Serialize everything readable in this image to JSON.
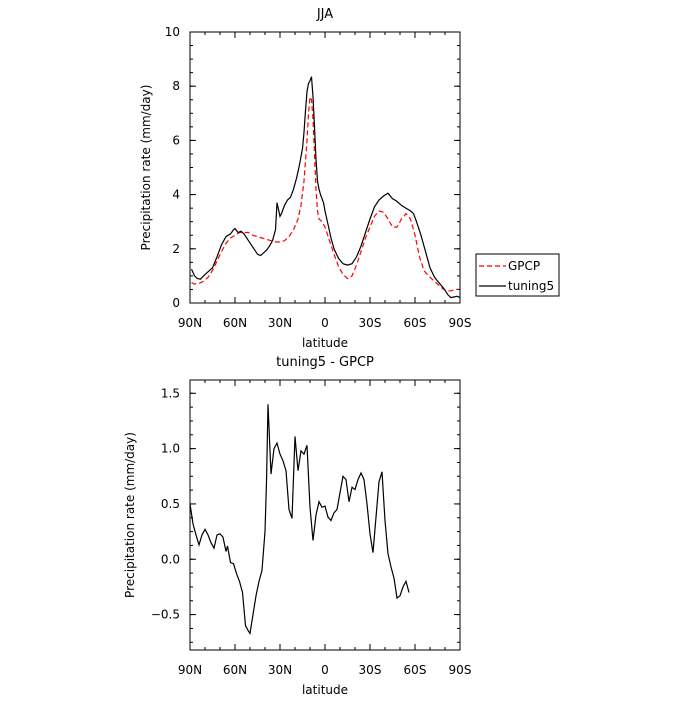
{
  "colors": {
    "obs": "#ff0000",
    "model": "#000000",
    "axis": "#000000"
  },
  "chart_data": [
    {
      "type": "line",
      "title": "JJA",
      "xlabel": "latitude",
      "ylabel": "Precipitation rate (mm/day)",
      "xlim": [
        90,
        -90
      ],
      "ylim": [
        0,
        10
      ],
      "x_ticks": [
        90,
        60,
        30,
        0,
        -30,
        -60,
        -90
      ],
      "x_tick_labels": [
        "90N",
        "60N",
        "30N",
        "0",
        "30S",
        "60S",
        "90S"
      ],
      "y_ticks": [
        0,
        2,
        4,
        6,
        8,
        10
      ],
      "y_tick_labels": [
        "0",
        "2",
        "4",
        "6",
        "8",
        "10"
      ],
      "legend_placement": "right",
      "series": [
        {
          "name": "GPCP",
          "style": "dashed",
          "color": "#ff0000",
          "points": [
            [
              89,
              0.75
            ],
            [
              87,
              0.7
            ],
            [
              84,
              0.72
            ],
            [
              81,
              0.8
            ],
            [
              78,
              0.95
            ],
            [
              75,
              1.2
            ],
            [
              72,
              1.55
            ],
            [
              69,
              1.9
            ],
            [
              66,
              2.2
            ],
            [
              63,
              2.4
            ],
            [
              60,
              2.5
            ],
            [
              57,
              2.6
            ],
            [
              54,
              2.6
            ],
            [
              51,
              2.6
            ],
            [
              48,
              2.5
            ],
            [
              45,
              2.45
            ],
            [
              42,
              2.4
            ],
            [
              39,
              2.35
            ],
            [
              36,
              2.3
            ],
            [
              33,
              2.25
            ],
            [
              30,
              2.25
            ],
            [
              27,
              2.3
            ],
            [
              24,
              2.45
            ],
            [
              21,
              2.7
            ],
            [
              18,
              3.1
            ],
            [
              16,
              3.6
            ],
            [
              14,
              4.5
            ],
            [
              12,
              6.0
            ],
            [
              11,
              7.0
            ],
            [
              10,
              7.6
            ],
            [
              9,
              7.5
            ],
            [
              8,
              6.8
            ],
            [
              7,
              5.5
            ],
            [
              6,
              4.2
            ],
            [
              5,
              3.4
            ],
            [
              4,
              3.1
            ],
            [
              2,
              3.0
            ],
            [
              0,
              2.8
            ],
            [
              -3,
              2.3
            ],
            [
              -6,
              1.8
            ],
            [
              -9,
              1.35
            ],
            [
              -12,
              1.05
            ],
            [
              -15,
              0.9
            ],
            [
              -18,
              1.0
            ],
            [
              -21,
              1.4
            ],
            [
              -24,
              1.9
            ],
            [
              -27,
              2.4
            ],
            [
              -30,
              2.8
            ],
            [
              -33,
              3.2
            ],
            [
              -36,
              3.4
            ],
            [
              -39,
              3.35
            ],
            [
              -42,
              3.1
            ],
            [
              -45,
              2.8
            ],
            [
              -48,
              2.8
            ],
            [
              -51,
              3.1
            ],
            [
              -54,
              3.3
            ],
            [
              -57,
              3.1
            ],
            [
              -60,
              2.5
            ],
            [
              -63,
              1.7
            ],
            [
              -66,
              1.2
            ],
            [
              -69,
              1.0
            ],
            [
              -72,
              0.85
            ],
            [
              -75,
              0.7
            ],
            [
              -78,
              0.55
            ],
            [
              -81,
              0.45
            ],
            [
              -84,
              0.45
            ],
            [
              -87,
              0.5
            ],
            [
              -89,
              0.5
            ]
          ]
        },
        {
          "name": "tuning5",
          "style": "solid",
          "color": "#000000",
          "points": [
            [
              89,
              1.25
            ],
            [
              87,
              1.0
            ],
            [
              85,
              0.9
            ],
            [
              83,
              0.88
            ],
            [
              81,
              1.0
            ],
            [
              78,
              1.15
            ],
            [
              75,
              1.3
            ],
            [
              72,
              1.7
            ],
            [
              69,
              2.15
            ],
            [
              66,
              2.45
            ],
            [
              63,
              2.55
            ],
            [
              61,
              2.7
            ],
            [
              60,
              2.75
            ],
            [
              58,
              2.6
            ],
            [
              56,
              2.65
            ],
            [
              54,
              2.55
            ],
            [
              51,
              2.3
            ],
            [
              48,
              2.05
            ],
            [
              45,
              1.8
            ],
            [
              43,
              1.75
            ],
            [
              41,
              1.85
            ],
            [
              39,
              1.95
            ],
            [
              37,
              2.1
            ],
            [
              35,
              2.3
            ],
            [
              33,
              2.7
            ],
            [
              32,
              3.7
            ],
            [
              30,
              3.2
            ],
            [
              29,
              3.3
            ],
            [
              27,
              3.6
            ],
            [
              25,
              3.8
            ],
            [
              23,
              3.9
            ],
            [
              21,
              4.2
            ],
            [
              19,
              4.6
            ],
            [
              17,
              5.1
            ],
            [
              15,
              5.7
            ],
            [
              14,
              6.3
            ],
            [
              13,
              7.1
            ],
            [
              12,
              7.8
            ],
            [
              11,
              8.1
            ],
            [
              10,
              8.2
            ],
            [
              9,
              8.35
            ],
            [
              8,
              7.6
            ],
            [
              7,
              6.5
            ],
            [
              6,
              5.3
            ],
            [
              5,
              4.5
            ],
            [
              4,
              4.2
            ],
            [
              3,
              4.0
            ],
            [
              1,
              3.7
            ],
            [
              0,
              3.4
            ],
            [
              -2,
              2.9
            ],
            [
              -4,
              2.4
            ],
            [
              -6,
              2.0
            ],
            [
              -9,
              1.65
            ],
            [
              -12,
              1.45
            ],
            [
              -15,
              1.4
            ],
            [
              -18,
              1.45
            ],
            [
              -21,
              1.7
            ],
            [
              -24,
              2.1
            ],
            [
              -27,
              2.6
            ],
            [
              -30,
              3.1
            ],
            [
              -33,
              3.55
            ],
            [
              -36,
              3.8
            ],
            [
              -39,
              3.95
            ],
            [
              -42,
              4.05
            ],
            [
              -45,
              3.85
            ],
            [
              -48,
              3.75
            ],
            [
              -51,
              3.6
            ],
            [
              -54,
              3.5
            ],
            [
              -57,
              3.4
            ],
            [
              -59,
              3.3
            ],
            [
              -61,
              3.0
            ],
            [
              -64,
              2.5
            ],
            [
              -67,
              1.9
            ],
            [
              -70,
              1.3
            ],
            [
              -73,
              0.95
            ],
            [
              -76,
              0.75
            ],
            [
              -79,
              0.55
            ],
            [
              -82,
              0.3
            ],
            [
              -84,
              0.2
            ],
            [
              -86,
              0.22
            ],
            [
              -88,
              0.25
            ],
            [
              -90,
              0.2
            ]
          ]
        }
      ]
    },
    {
      "type": "line",
      "title": "tuning5 - GPCP",
      "xlabel": "latitude",
      "ylabel": "Precipitation rate (mm/day)",
      "xlim": [
        90,
        -90
      ],
      "ylim": [
        -0.82,
        1.62
      ],
      "x_ticks": [
        90,
        60,
        30,
        0,
        -30,
        -60,
        -90
      ],
      "x_tick_labels": [
        "90N",
        "60N",
        "30N",
        "0",
        "30S",
        "60S",
        "90S"
      ],
      "y_ticks": [
        -0.5,
        0,
        0.5,
        1,
        1.5
      ],
      "y_tick_labels": [
        "−0.5",
        "0.0",
        "0.5",
        "1.0",
        "1.5"
      ],
      "series": [
        {
          "style": "solid",
          "color": "#000000",
          "points": [
            [
              90,
              0.5
            ],
            [
              88,
              0.32
            ],
            [
              86,
              0.22
            ],
            [
              84,
              0.13
            ],
            [
              82,
              0.22
            ],
            [
              80,
              0.27
            ],
            [
              78,
              0.22
            ],
            [
              76,
              0.15
            ],
            [
              74,
              0.1
            ],
            [
              72,
              0.22
            ],
            [
              70,
              0.23
            ],
            [
              68,
              0.2
            ],
            [
              66,
              0.07
            ],
            [
              65,
              0.12
            ],
            [
              63,
              -0.03
            ],
            [
              61,
              -0.04
            ],
            [
              59,
              -0.13
            ],
            [
              57,
              -0.2
            ],
            [
              55,
              -0.3
            ],
            [
              53,
              -0.6
            ],
            [
              51,
              -0.65
            ],
            [
              50,
              -0.67
            ],
            [
              48,
              -0.5
            ],
            [
              46,
              -0.33
            ],
            [
              44,
              -0.2
            ],
            [
              42,
              -0.1
            ],
            [
              40,
              0.25
            ],
            [
              39,
              0.7
            ],
            [
              38,
              1.4
            ],
            [
              36,
              0.77
            ],
            [
              34,
              1.0
            ],
            [
              32,
              1.05
            ],
            [
              30,
              0.95
            ],
            [
              28,
              0.89
            ],
            [
              26,
              0.8
            ],
            [
              24,
              0.45
            ],
            [
              22,
              0.37
            ],
            [
              20,
              1.11
            ],
            [
              18,
              0.8
            ],
            [
              16,
              0.98
            ],
            [
              14,
              0.95
            ],
            [
              12,
              1.03
            ],
            [
              10,
              0.47
            ],
            [
              8,
              0.17
            ],
            [
              6,
              0.4
            ],
            [
              4,
              0.52
            ],
            [
              2,
              0.47
            ],
            [
              0,
              0.48
            ],
            [
              -2,
              0.38
            ],
            [
              -4,
              0.35
            ],
            [
              -6,
              0.42
            ],
            [
              -8,
              0.45
            ],
            [
              -10,
              0.6
            ],
            [
              -12,
              0.75
            ],
            [
              -14,
              0.72
            ],
            [
              -16,
              0.52
            ],
            [
              -18,
              0.65
            ],
            [
              -20,
              0.63
            ],
            [
              -22,
              0.72
            ],
            [
              -24,
              0.78
            ],
            [
              -26,
              0.72
            ],
            [
              -28,
              0.5
            ],
            [
              -30,
              0.23
            ],
            [
              -32,
              0.06
            ],
            [
              -34,
              0.38
            ],
            [
              -36,
              0.7
            ],
            [
              -38,
              0.79
            ],
            [
              -40,
              0.35
            ],
            [
              -42,
              0.05
            ],
            [
              -44,
              -0.07
            ],
            [
              -46,
              -0.17
            ],
            [
              -48,
              -0.35
            ],
            [
              -50,
              -0.33
            ],
            [
              -52,
              -0.25
            ],
            [
              -54,
              -0.2
            ],
            [
              -56,
              -0.3
            ]
          ]
        }
      ]
    }
  ]
}
